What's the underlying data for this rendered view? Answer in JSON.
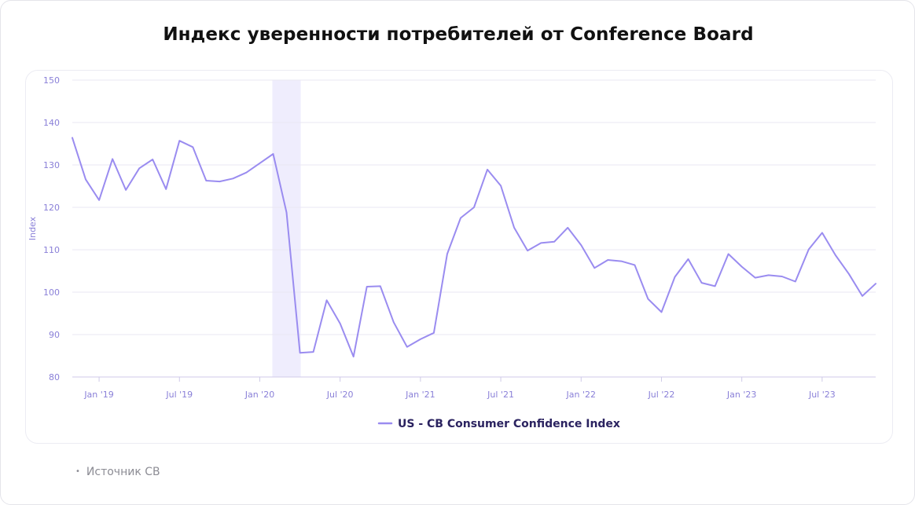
{
  "title": "Индекс уверенности потребителей от Conference Board",
  "source": "Источник CB",
  "colors": {
    "line": "#9a8cf0",
    "recession": "#efedfd",
    "grid": "#e9e7f3",
    "tick": "#8a80d8"
  },
  "chart_data": {
    "type": "line",
    "title": "Индекс уверенности потребителей от Conference Board",
    "ylabel": "Index",
    "xlabel": "",
    "ylim": [
      80,
      150
    ],
    "yticks": [
      80,
      90,
      100,
      110,
      120,
      130,
      140,
      150
    ],
    "xlim": [
      "2018-11",
      "2023-11"
    ],
    "xticks": [
      {
        "date": "2019-01",
        "label": "Jan '19"
      },
      {
        "date": "2019-07",
        "label": "Jul '19"
      },
      {
        "date": "2020-01",
        "label": "Jan '20"
      },
      {
        "date": "2020-07",
        "label": "Jul '20"
      },
      {
        "date": "2021-01",
        "label": "Jan '21"
      },
      {
        "date": "2021-07",
        "label": "Jul '21"
      },
      {
        "date": "2022-01",
        "label": "Jan '22"
      },
      {
        "date": "2022-07",
        "label": "Jul '22"
      },
      {
        "date": "2023-01",
        "label": "Jan '23"
      },
      {
        "date": "2023-07",
        "label": "Jul '23"
      }
    ],
    "shaded_region": {
      "from": "2020-02",
      "to": "2020-04"
    },
    "grid": true,
    "legend_position": "bottom-center",
    "series": [
      {
        "name": "US - CB Consumer Confidence Index",
        "x": [
          "2018-11",
          "2018-12",
          "2019-01",
          "2019-02",
          "2019-03",
          "2019-04",
          "2019-05",
          "2019-06",
          "2019-07",
          "2019-08",
          "2019-09",
          "2019-10",
          "2019-11",
          "2019-12",
          "2020-01",
          "2020-02",
          "2020-03",
          "2020-04",
          "2020-05",
          "2020-06",
          "2020-07",
          "2020-08",
          "2020-09",
          "2020-10",
          "2020-11",
          "2020-12",
          "2021-01",
          "2021-02",
          "2021-03",
          "2021-04",
          "2021-05",
          "2021-06",
          "2021-07",
          "2021-08",
          "2021-09",
          "2021-10",
          "2021-11",
          "2021-12",
          "2022-01",
          "2022-02",
          "2022-03",
          "2022-04",
          "2022-05",
          "2022-06",
          "2022-07",
          "2022-08",
          "2022-09",
          "2022-10",
          "2022-11",
          "2022-12",
          "2023-01",
          "2023-02",
          "2023-03",
          "2023-04",
          "2023-05",
          "2023-06",
          "2023-07",
          "2023-08",
          "2023-09",
          "2023-10",
          "2023-11"
        ],
        "values": [
          136.4,
          126.6,
          121.7,
          131.4,
          124.1,
          129.2,
          131.3,
          124.3,
          135.7,
          134.2,
          126.3,
          126.1,
          126.8,
          128.2,
          130.4,
          132.6,
          118.8,
          85.7,
          85.9,
          98.1,
          92.6,
          84.8,
          101.3,
          101.4,
          92.9,
          87.1,
          88.9,
          90.4,
          109.0,
          117.5,
          120.0,
          128.9,
          125.1,
          115.2,
          109.8,
          111.6,
          111.9,
          115.2,
          111.1,
          105.7,
          107.6,
          107.3,
          106.4,
          98.4,
          95.3,
          103.6,
          107.8,
          102.2,
          101.4,
          109.0,
          106.0,
          103.4,
          104.0,
          103.7,
          102.5,
          110.1,
          114.0,
          108.7,
          104.3,
          99.1,
          102.0
        ]
      }
    ]
  }
}
